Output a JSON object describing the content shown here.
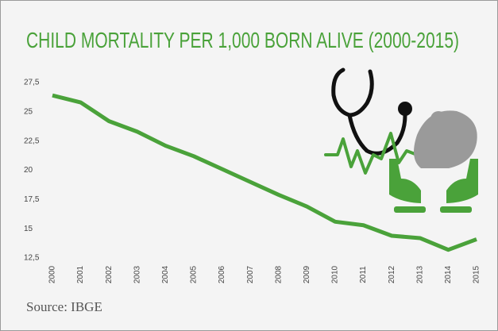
{
  "chart_data": {
    "type": "line",
    "title": "CHILD MORTALITY PER 1,000 BORN ALIVE (2000-2015)",
    "source": "Source: IBGE",
    "categories": [
      "2000",
      "2001",
      "2002",
      "2003",
      "2004",
      "2005",
      "2006",
      "2007",
      "2008",
      "2009",
      "2010",
      "2011",
      "2012",
      "2013",
      "2014",
      "2015"
    ],
    "values": [
      26.4,
      25.8,
      24.2,
      23.3,
      22.1,
      21.2,
      20.1,
      19.0,
      17.9,
      16.9,
      15.6,
      15.3,
      14.4,
      14.2,
      13.2,
      14.1
    ],
    "color": "#4aa23a",
    "ylim": [
      12.5,
      27.5
    ],
    "yticks": [
      {
        "value": 12.5,
        "label": "12,5"
      },
      15,
      {
        "value": 17.5,
        "label": "17,5"
      },
      20,
      {
        "value": 22.5,
        "label": "22,5"
      },
      25,
      {
        "value": 27.5,
        "label": "27,5"
      }
    ],
    "grid": false
  }
}
